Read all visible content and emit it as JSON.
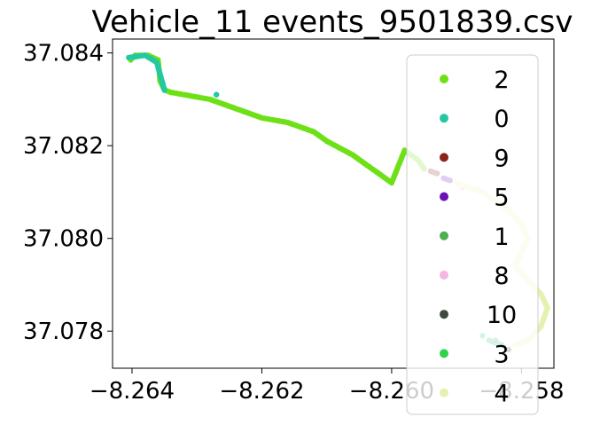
{
  "chart_data": {
    "type": "scatter",
    "title": "Vehicle_11 events_9501839.csv",
    "xlabel": "",
    "ylabel": "",
    "xlim": [
      -8.2643,
      -8.2575
    ],
    "ylim": [
      37.0772,
      37.0843
    ],
    "x_ticks": [
      -8.264,
      -8.262,
      -8.26,
      -8.258
    ],
    "x_tick_labels": [
      "−8.264",
      "−8.262",
      "−8.260",
      "−8.258"
    ],
    "y_ticks": [
      37.078,
      37.08,
      37.082,
      37.084
    ],
    "y_tick_labels": [
      "37.078",
      "37.080",
      "37.082",
      "37.084"
    ],
    "grid": false,
    "legend_position": "right",
    "legend": [
      {
        "label": "2",
        "color": "#6ee016"
      },
      {
        "label": "0",
        "color": "#23c8a0"
      },
      {
        "label": "9",
        "color": "#8c2318"
      },
      {
        "label": "5",
        "color": "#6a10b8"
      },
      {
        "label": "1",
        "color": "#4caf50"
      },
      {
        "label": "8",
        "color": "#f4b6e4"
      },
      {
        "label": "10",
        "color": "#3e4a3d"
      },
      {
        "label": "3",
        "color": "#2ed34a"
      },
      {
        "label": "4",
        "color": "#e4f2b0"
      }
    ],
    "series": [
      {
        "name": "2",
        "color": "#6ee016",
        "points": [
          [
            -8.26402,
            37.08385
          ],
          [
            -8.26395,
            37.08395
          ],
          [
            -8.26375,
            37.08395
          ],
          [
            -8.2636,
            37.08385
          ],
          [
            -8.26358,
            37.0836
          ],
          [
            -8.26357,
            37.0834
          ],
          [
            -8.2635,
            37.0832
          ],
          [
            -8.2634,
            37.08315
          ],
          [
            -8.2632,
            37.0831
          ],
          [
            -8.263,
            37.08305
          ],
          [
            -8.2628,
            37.083
          ],
          [
            -8.2626,
            37.0829
          ],
          [
            -8.2624,
            37.0828
          ],
          [
            -8.2622,
            37.0827
          ],
          [
            -8.262,
            37.0826
          ],
          [
            -8.2618,
            37.08255
          ],
          [
            -8.2616,
            37.0825
          ],
          [
            -8.2614,
            37.0824
          ],
          [
            -8.2612,
            37.0823
          ],
          [
            -8.261,
            37.0821
          ],
          [
            -8.2608,
            37.08195
          ],
          [
            -8.2606,
            37.0818
          ],
          [
            -8.2604,
            37.0816
          ],
          [
            -8.2602,
            37.0814
          ],
          [
            -8.26,
            37.0812
          ],
          [
            -8.2598,
            37.0819
          ],
          [
            -8.2596,
            37.0817
          ],
          [
            -8.2595,
            37.0815
          ]
        ]
      },
      {
        "name": "0",
        "color": "#23c8a0",
        "points": [
          [
            -8.26405,
            37.0839
          ],
          [
            -8.2638,
            37.08395
          ],
          [
            -8.26362,
            37.0838
          ],
          [
            -8.2635,
            37.0832
          ],
          [
            -8.2627,
            37.0831
          ],
          [
            -8.2585,
            37.0778
          ],
          [
            -8.2583,
            37.0777
          ]
        ]
      },
      {
        "name": "9",
        "color": "#8c2318",
        "points": [
          [
            -8.2594,
            37.08145
          ],
          [
            -8.2593,
            37.0814
          ]
        ]
      },
      {
        "name": "5",
        "color": "#6a10b8",
        "points": [
          [
            -8.2592,
            37.0813
          ],
          [
            -8.2591,
            37.08125
          ]
        ]
      },
      {
        "name": "1",
        "color": "#4caf50",
        "points": [
          [
            -8.2584,
            37.0778
          ]
        ]
      },
      {
        "name": "8",
        "color": "#f4b6e4",
        "points": [
          [
            -8.2589,
            37.0811
          ]
        ]
      },
      {
        "name": "10",
        "color": "#3e4a3d",
        "points": [
          [
            -8.2582,
            37.0776
          ]
        ]
      },
      {
        "name": "3",
        "color": "#2ed34a",
        "points": [
          [
            -8.2586,
            37.0779
          ]
        ]
      },
      {
        "name": "4",
        "color": "#e4f2b0",
        "points": [
          [
            -8.259,
            37.0812
          ],
          [
            -8.2588,
            37.0811
          ],
          [
            -8.2586,
            37.081
          ],
          [
            -8.2584,
            37.0808
          ],
          [
            -8.2582,
            37.0806
          ],
          [
            -8.258,
            37.0803
          ],
          [
            -8.2579,
            37.08
          ],
          [
            -8.258,
            37.0797
          ],
          [
            -8.2581,
            37.0794
          ],
          [
            -8.2579,
            37.0791
          ],
          [
            -8.2577,
            37.0788
          ],
          [
            -8.2576,
            37.0785
          ],
          [
            -8.2577,
            37.0781
          ],
          [
            -8.2579,
            37.0778
          ],
          [
            -8.2581,
            37.0777
          ]
        ]
      }
    ]
  }
}
